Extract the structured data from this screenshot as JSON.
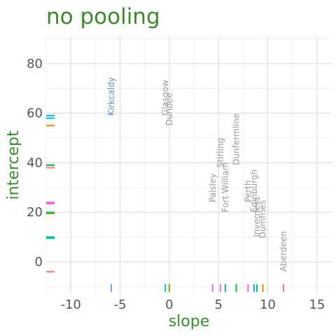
{
  "chart_data": {
    "type": "scatter",
    "title": "no pooling",
    "xlabel": "slope",
    "ylabel": "intercept",
    "xlim": [
      -12.5,
      16.5
    ],
    "ylim": [
      -13,
      91
    ],
    "x_ticks": [
      -10,
      -5,
      0,
      5,
      10,
      15
    ],
    "y_ticks": [
      0,
      20,
      40,
      60,
      80
    ],
    "grid": true,
    "highlight": "Kirkcaldy",
    "points": [
      {
        "name": "Kirkcaldy",
        "x": -5.9,
        "y": 59,
        "color": "#6b9ee8"
      },
      {
        "name": "Glasgow",
        "x": -0.4,
        "y": 59,
        "color": "#00bfc4"
      },
      {
        "name": "Dundee",
        "x": 0.0,
        "y": 55,
        "color": "#7cae00"
      },
      {
        "name": "Dunfermline",
        "x": 6.8,
        "y": 39,
        "color": "#00ba38"
      },
      {
        "name": "Stirling",
        "x": 5.2,
        "y": 38,
        "color": "#c77cff"
      },
      {
        "name": "Fort William",
        "x": 5.7,
        "y": 20,
        "color": "#00c094"
      },
      {
        "name": "Paisley",
        "x": 4.4,
        "y": 24,
        "color": "#e76bf3"
      },
      {
        "name": "Perth",
        "x": 8.0,
        "y": 24,
        "color": "#fe61cf"
      },
      {
        "name": "Edinburgh",
        "x": 8.6,
        "y": 20,
        "color": "#00b0f6"
      },
      {
        "name": "Inverness",
        "x": 8.9,
        "y": 10,
        "color": "#00bf7d"
      },
      {
        "name": "Dumfries",
        "x": 9.5,
        "y": 9.5,
        "color": "#d89000"
      },
      {
        "name": "Aberdeen",
        "x": 11.6,
        "y": -4,
        "color": "#f8766d"
      }
    ],
    "y_rug": [
      {
        "y": 59,
        "color": "#00b0f6"
      },
      {
        "y": 58,
        "color": "#00bfc4"
      },
      {
        "y": 55,
        "color": "#d89000"
      },
      {
        "y": 39,
        "color": "#00ba38"
      },
      {
        "y": 38,
        "color": "#f8766d"
      },
      {
        "y": 24,
        "color": "#e76bf3"
      },
      {
        "y": 23.5,
        "color": "#fe61cf"
      },
      {
        "y": 20,
        "color": "#00c094"
      },
      {
        "y": 19.5,
        "color": "#7cae00"
      },
      {
        "y": 10,
        "color": "#00bf7d"
      },
      {
        "y": 9.5,
        "color": "#00bfc4"
      },
      {
        "y": -4,
        "color": "#f8766d"
      }
    ]
  }
}
